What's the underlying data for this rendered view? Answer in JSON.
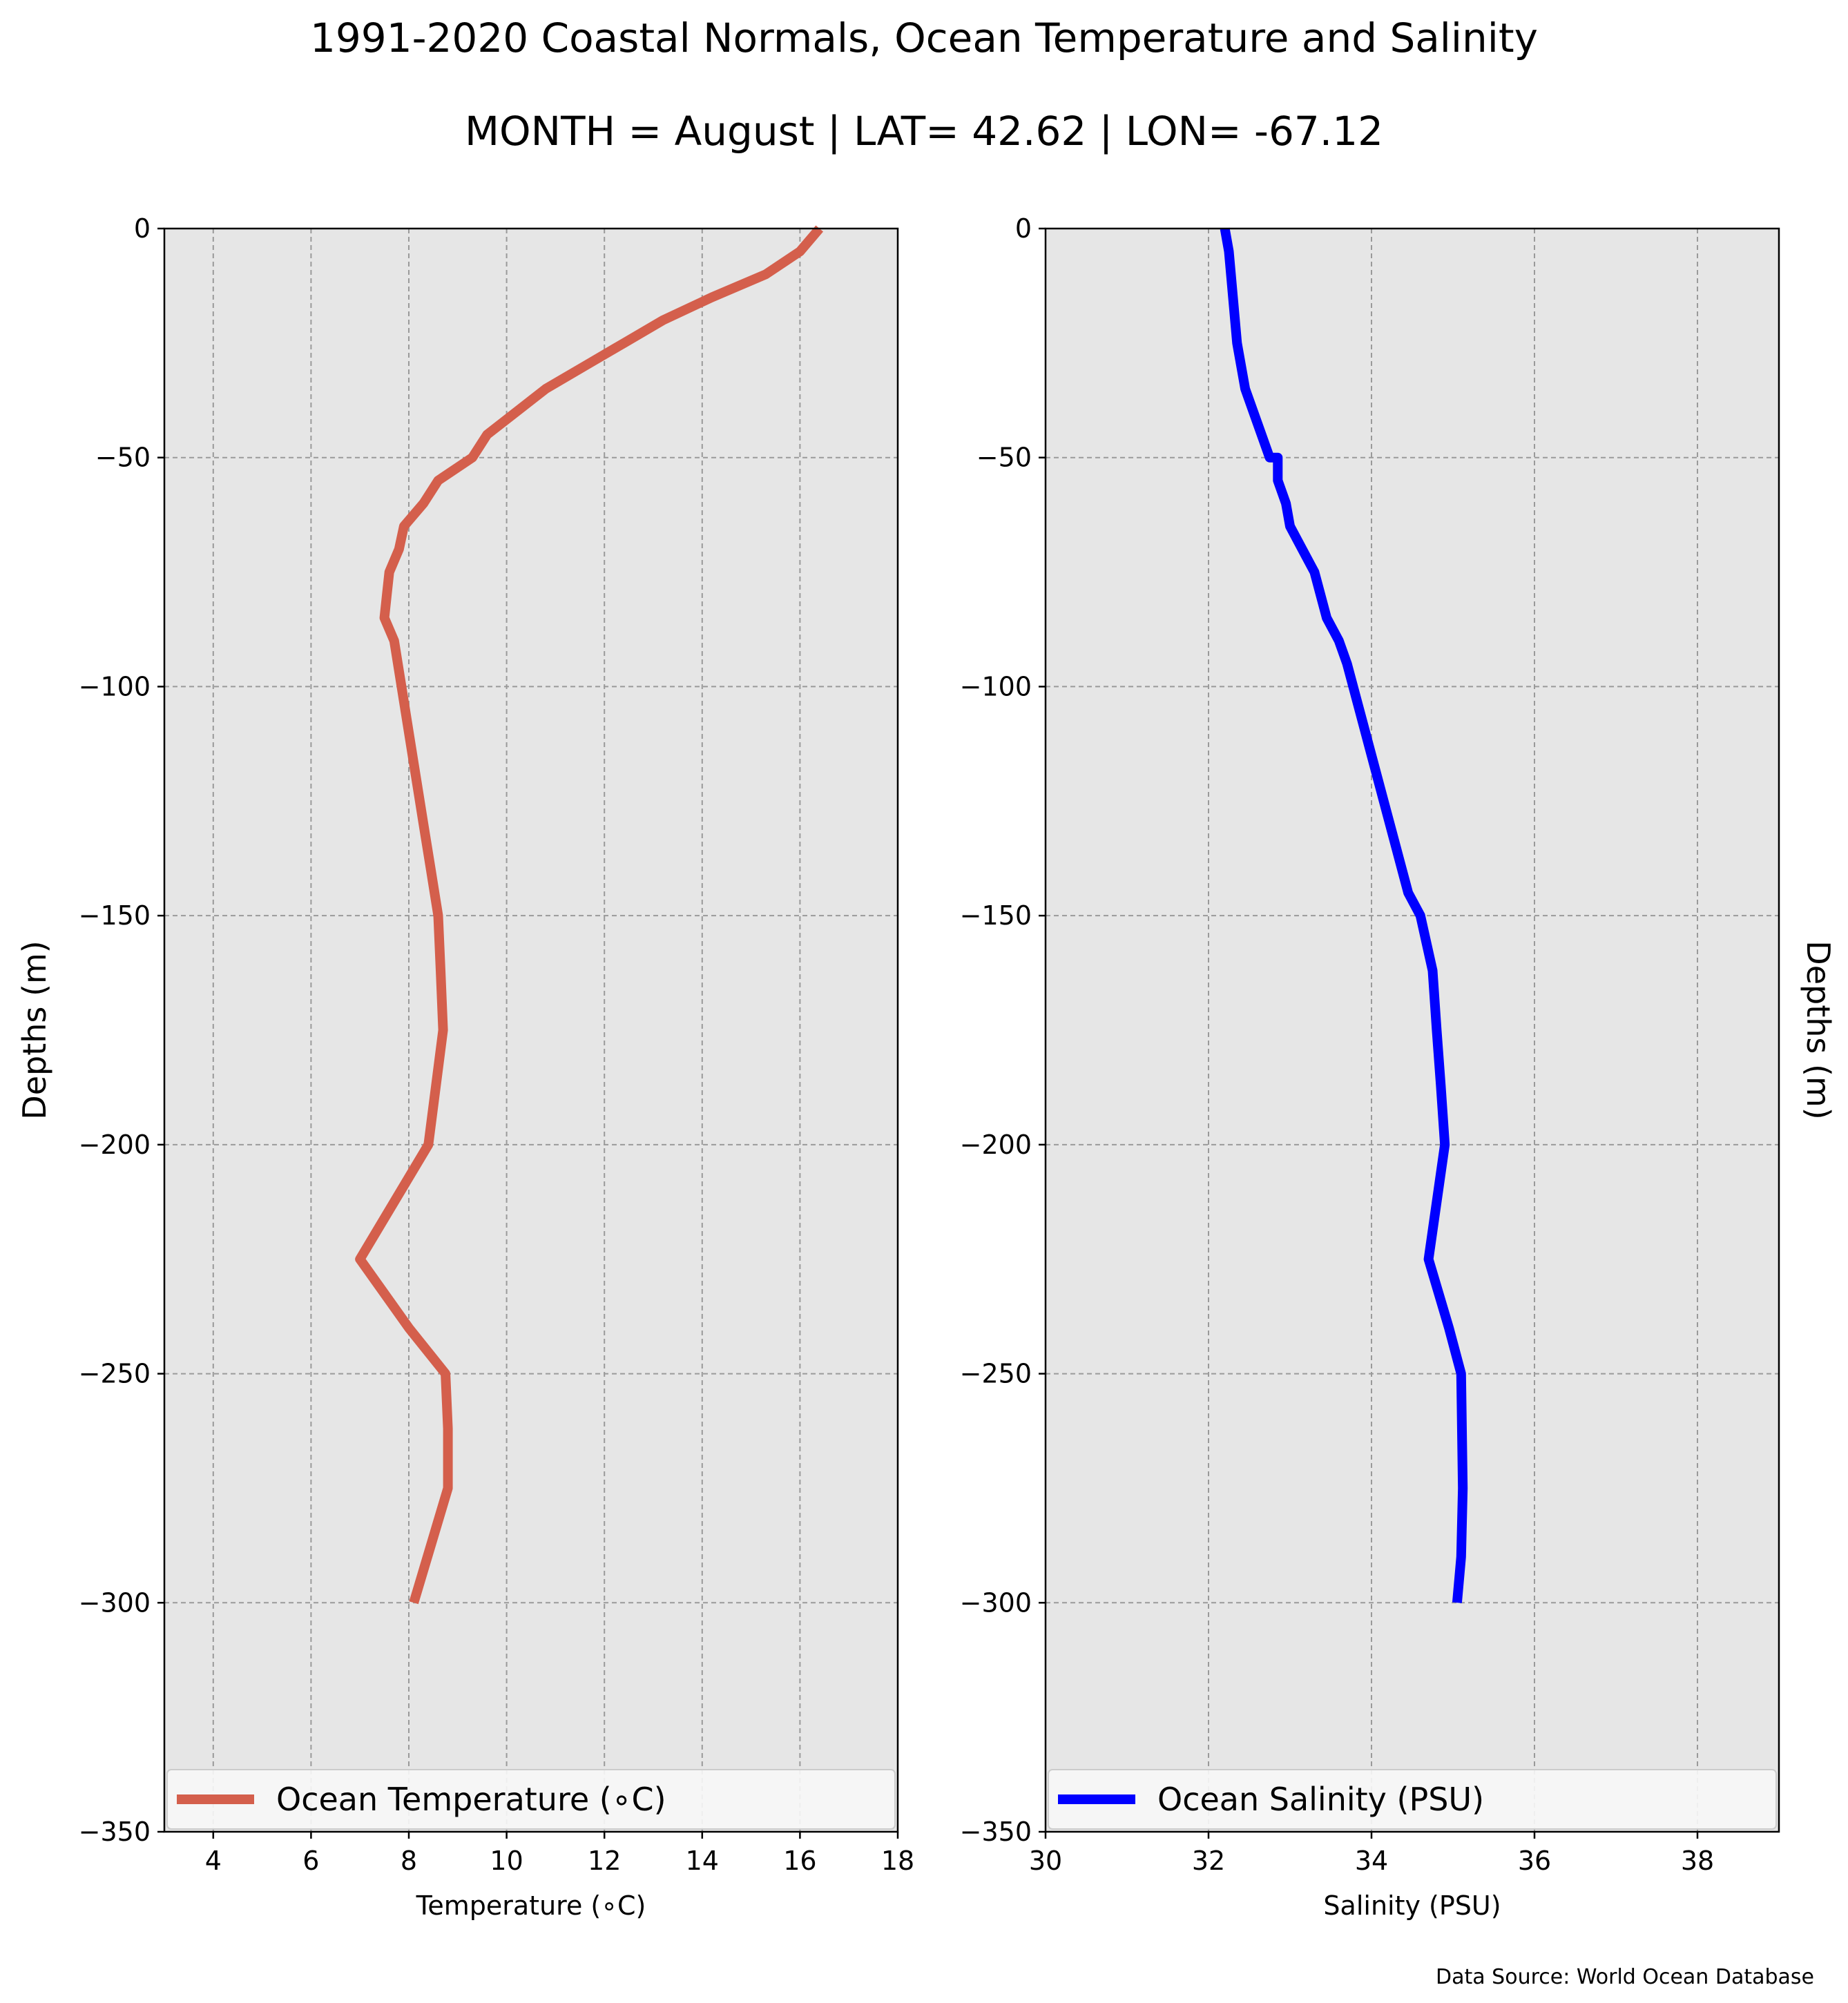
{
  "title": "1991-2020 Coastal Normals, Ocean Temperature and Salinity",
  "subtitle": "MONTH = August | LAT= 42.62 | LON= -67.12",
  "source_note": "Data Source: World Ocean Database",
  "colors": {
    "plot_background": "#e6e6e6",
    "temperature_line": "#d45f4c",
    "salinity_line": "#0000ff",
    "grid": "#9a9a9a"
  },
  "chart_data": [
    {
      "type": "line",
      "series": [
        {
          "name": "Ocean Temperature (∘C)",
          "x": [
            16.4,
            16.0,
            15.3,
            14.2,
            13.2,
            12.4,
            11.6,
            10.8,
            10.2,
            9.6,
            9.3,
            8.6,
            8.3,
            7.9,
            7.8,
            7.6,
            7.55,
            7.5,
            7.7,
            7.85,
            8.0,
            8.15,
            8.3,
            8.45,
            8.6,
            8.65,
            8.7,
            8.4,
            7.0,
            8.0,
            8.75,
            8.8,
            8.8,
            8.1
          ],
          "y": [
            0,
            -5,
            -10,
            -15,
            -20,
            -25,
            -30,
            -35,
            -40,
            -45,
            -50,
            -55,
            -60,
            -65,
            -70,
            -75,
            -80,
            -85,
            -90,
            -100,
            -110,
            -120,
            -130,
            -140,
            -150,
            -162,
            -175,
            -200,
            -225,
            -240,
            -250,
            -262,
            -275,
            -300
          ]
        }
      ],
      "xlabel": "Temperature (∘C)",
      "ylabel": "Depths (m)",
      "xlim": [
        3,
        18
      ],
      "ylim": [
        -350,
        0
      ],
      "xticks": [
        "4",
        "6",
        "8",
        "10",
        "12",
        "14",
        "16",
        "18"
      ],
      "yticks": [
        "0",
        "−50",
        "−100",
        "−150",
        "−200",
        "−250",
        "−300",
        "−350"
      ],
      "grid": true,
      "legend": "lower center"
    },
    {
      "type": "line",
      "series": [
        {
          "name": "Ocean Salinity (PSU)",
          "x": [
            32.2,
            32.25,
            32.3,
            32.35,
            32.45,
            32.55,
            32.65,
            32.75,
            32.85,
            32.85,
            32.95,
            33.0,
            33.15,
            33.3,
            33.45,
            33.6,
            33.7,
            33.85,
            34.0,
            34.15,
            34.3,
            34.45,
            34.6,
            34.75,
            34.8,
            34.85,
            34.9,
            34.7,
            34.95,
            35.1,
            35.12,
            35.1,
            35.05
          ],
          "y": [
            0,
            -5,
            -15,
            -25,
            -35,
            -40,
            -45,
            -50,
            -50,
            -55,
            -60,
            -65,
            -70,
            -75,
            -85,
            -90,
            -95,
            -105,
            -115,
            -125,
            -135,
            -145,
            -150,
            -162,
            -175,
            -187,
            -200,
            -225,
            -240,
            -250,
            -275,
            -290,
            -300
          ]
        }
      ],
      "xlabel": "Salinity (PSU)",
      "ylabel": "Depths (m)",
      "xlim": [
        30,
        39
      ],
      "ylim": [
        -350,
        0
      ],
      "xticks": [
        "30",
        "32",
        "34",
        "36",
        "38"
      ],
      "yticks": [
        "0",
        "−50",
        "−100",
        "−150",
        "−200",
        "−250",
        "−300",
        "−350"
      ],
      "grid": true,
      "legend": "lower center"
    }
  ]
}
